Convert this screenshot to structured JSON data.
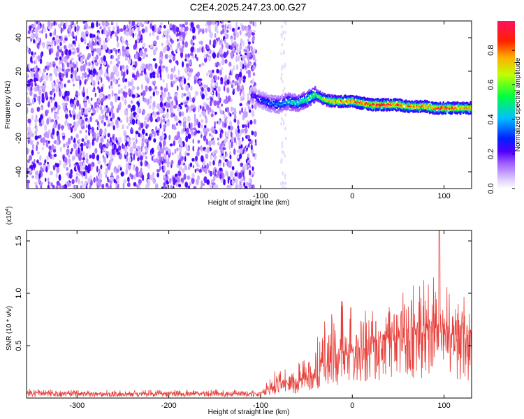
{
  "title": "C2E4.2025.247.23.00.G27",
  "chart_data": [
    {
      "type": "heatmap",
      "xlabel": "Height of straight line (km)",
      "ylabel": "Frequency (Hz)",
      "xlim": [
        -355,
        130
      ],
      "ylim": [
        -50,
        50
      ],
      "xticks": [
        -300,
        -200,
        -100,
        0,
        100
      ],
      "yticks": [
        -40,
        -20,
        0,
        20,
        40
      ],
      "colorbar": {
        "label": "Normalized spectral amplitude",
        "range": [
          0,
          0.97
        ],
        "ticks": [
          0.0,
          0.2,
          0.4,
          0.6,
          0.8
        ],
        "colormap": "rainbow"
      },
      "noise_region_x": [
        -355,
        -105
      ],
      "signal_trace": {
        "x": [
          -110,
          -100,
          -90,
          -80,
          -70,
          -60,
          -50,
          -40,
          -30,
          -20,
          -10,
          0,
          10,
          20,
          30,
          40,
          50,
          60,
          70,
          80,
          90,
          100,
          110,
          120,
          130
        ],
        "freq": [
          6,
          3,
          1,
          0,
          2,
          1,
          3,
          6,
          3,
          2,
          2,
          2,
          1,
          0,
          0,
          0,
          0,
          -1,
          -1,
          -1,
          -2,
          -2,
          -2,
          -2,
          -2
        ],
        "amplitude": [
          0.25,
          0.3,
          0.35,
          0.4,
          0.45,
          0.5,
          0.55,
          0.6,
          0.7,
          0.8,
          0.85,
          0.85,
          0.9,
          0.95,
          0.95,
          0.95,
          0.9,
          0.85,
          0.85,
          0.85,
          0.9,
          0.95,
          0.9,
          0.85,
          0.85
        ]
      }
    },
    {
      "type": "line",
      "xlabel": "Height of straight line (km)",
      "ylabel": "SNR (10 * v/v)",
      "scale_label": "(x10",
      "scale_exp": "4",
      "scale_close": ")",
      "xlim": [
        -355,
        130
      ],
      "ylim": [
        0,
        1.6
      ],
      "xticks": [
        -300,
        -200,
        -100,
        0,
        100
      ],
      "yticks": [
        0.5,
        1.0,
        1.5
      ],
      "ytick_labels": [
        "0.5",
        "1.0",
        "1.5"
      ],
      "color": "#e8403a",
      "envelope": {
        "x": [
          -355,
          -300,
          -250,
          -200,
          -150,
          -110,
          -100,
          -90,
          -80,
          -70,
          -60,
          -50,
          -40,
          -30,
          -20,
          -10,
          0,
          10,
          20,
          30,
          40,
          50,
          60,
          70,
          80,
          90,
          95,
          100,
          110,
          120,
          130
        ],
        "base": [
          0.05,
          0.04,
          0.04,
          0.04,
          0.04,
          0.04,
          0.05,
          0.08,
          0.15,
          0.13,
          0.15,
          0.18,
          0.22,
          0.28,
          0.35,
          0.4,
          0.42,
          0.45,
          0.5,
          0.55,
          0.55,
          0.55,
          0.58,
          0.6,
          0.62,
          0.62,
          0.6,
          0.6,
          0.6,
          0.58,
          0.55
        ],
        "peak": [
          0.09,
          0.08,
          0.08,
          0.08,
          0.09,
          0.08,
          0.1,
          0.18,
          0.35,
          0.28,
          0.35,
          0.45,
          0.58,
          0.75,
          0.85,
          1.0,
          0.9,
          0.95,
          1.0,
          1.1,
          1.0,
          1.05,
          1.15,
          1.25,
          1.2,
          1.2,
          1.6,
          1.1,
          1.0,
          1.05,
          0.95
        ]
      }
    }
  ]
}
